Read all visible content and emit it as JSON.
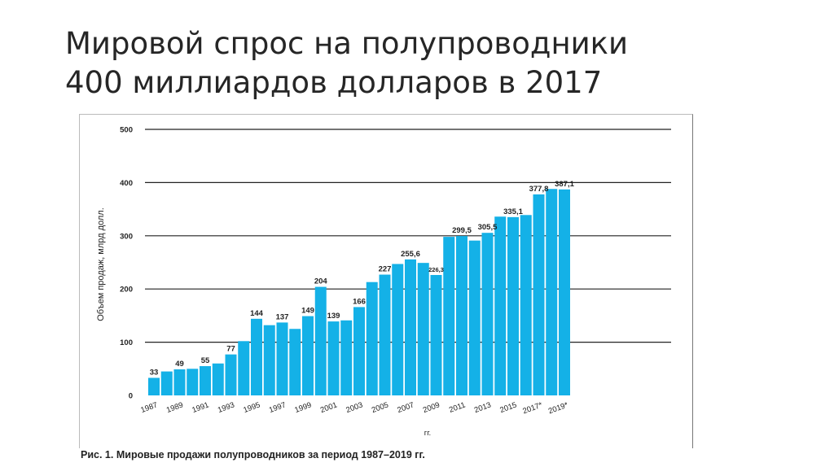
{
  "title": {
    "line1": "Мировой спрос на полупроводники",
    "line2": "400 миллиардов долларов в 2017"
  },
  "caption": {
    "prefix": "Рис. 1.",
    "text": "Мировые продажи полупроводников за период 1987–2019 гг."
  },
  "colors": {
    "bar": "#14b1e7",
    "grid": "#222222",
    "text": "#222222"
  },
  "chart_data": {
    "type": "bar",
    "ylabel": "Объем продаж, млрд долл.",
    "xlabel": "гг.",
    "ylim": [
      0,
      500
    ],
    "yticks": [
      0,
      100,
      200,
      300,
      400,
      500
    ],
    "grid": true,
    "categories": [
      "1987",
      "1988",
      "1989",
      "1990",
      "1991",
      "1992",
      "1993",
      "1994",
      "1995",
      "1996",
      "1997",
      "1998",
      "1999",
      "2000",
      "2001",
      "2002",
      "2003",
      "2004",
      "2005",
      "2006",
      "2007",
      "2008",
      "2009",
      "2010",
      "2011",
      "2012",
      "2013",
      "2014",
      "2015",
      "2016",
      "2017*",
      "2018",
      "2019*"
    ],
    "tick_labels": [
      "1987",
      "1989",
      "1991",
      "1993",
      "1995",
      "1997",
      "1999",
      "2001",
      "2003",
      "2005",
      "2007",
      "2009",
      "2011",
      "2013",
      "2015",
      "2017*",
      "2019*"
    ],
    "values": [
      33,
      45,
      49,
      50,
      55,
      60,
      77,
      102,
      144,
      132,
      137,
      125,
      149,
      204,
      139,
      141,
      166,
      213,
      227,
      247,
      255.6,
      249,
      226.3,
      298,
      299.5,
      291,
      305.5,
      336,
      335.1,
      339,
      377.8,
      388,
      387.1
    ],
    "data_labels": [
      {
        "index": 0,
        "text": "33"
      },
      {
        "index": 2,
        "text": "49"
      },
      {
        "index": 4,
        "text": "55"
      },
      {
        "index": 6,
        "text": "77"
      },
      {
        "index": 8,
        "text": "144"
      },
      {
        "index": 10,
        "text": "137"
      },
      {
        "index": 12,
        "text": "149"
      },
      {
        "index": 13,
        "text": "204"
      },
      {
        "index": 14,
        "text": "139"
      },
      {
        "index": 16,
        "text": "166"
      },
      {
        "index": 18,
        "text": "227"
      },
      {
        "index": 20,
        "text": "255,6"
      },
      {
        "index": 22,
        "text": "226,3"
      },
      {
        "index": 24,
        "text": "299,5"
      },
      {
        "index": 26,
        "text": "305,5"
      },
      {
        "index": 28,
        "text": "335,1"
      },
      {
        "index": 30,
        "text": "377,8"
      },
      {
        "index": 32,
        "text": "387,1"
      }
    ]
  }
}
